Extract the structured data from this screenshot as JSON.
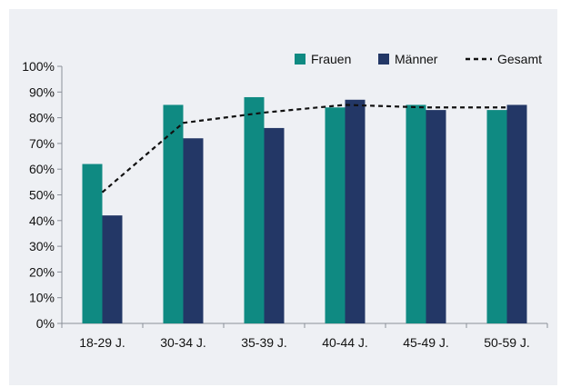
{
  "colors": {
    "frauen": "#0f8a82",
    "maenner": "#233766",
    "gesamt": "#111111",
    "axis": "#8a8f98",
    "background": "#eef0f4"
  },
  "legend": {
    "frauen": "Frauen",
    "maenner": "Männer",
    "gesamt": "Gesamt"
  },
  "chart_data": {
    "type": "bar",
    "categories": [
      "18-29 J.",
      "30-34 J.",
      "35-39 J.",
      "40-44 J.",
      "45-49 J.",
      "50-59 J."
    ],
    "series": [
      {
        "name": "Frauen",
        "type": "bar",
        "values": [
          62,
          85,
          88,
          84,
          85,
          83
        ]
      },
      {
        "name": "Männer",
        "type": "bar",
        "values": [
          42,
          72,
          76,
          87,
          83,
          85
        ]
      },
      {
        "name": "Gesamt",
        "type": "line",
        "style": "dashed",
        "values": [
          51,
          78,
          82,
          85,
          84,
          84
        ]
      }
    ],
    "yticks": [
      "0%",
      "10%",
      "20%",
      "30%",
      "40%",
      "50%",
      "60%",
      "70%",
      "80%",
      "90%",
      "100%"
    ],
    "ylim": [
      0,
      100
    ],
    "grid": false,
    "legend_position": "top-right"
  }
}
